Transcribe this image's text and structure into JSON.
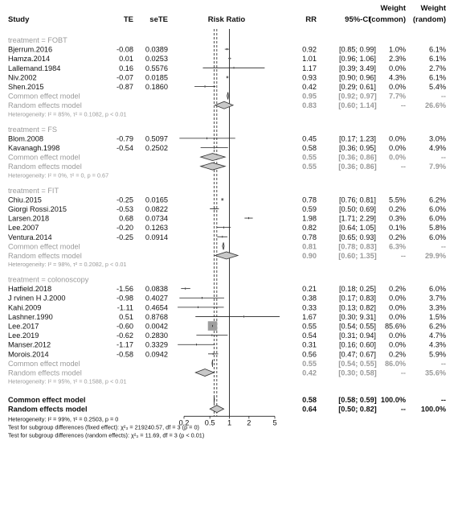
{
  "headers": {
    "study": "Study",
    "te": "TE",
    "sete": "seTE",
    "risk_ratio": "Risk Ratio",
    "rr": "RR",
    "ci": "95%-CI",
    "weight_top": "Weight",
    "weight_top2": "Weight",
    "weight_common": "(common)",
    "weight_random": "(random)"
  },
  "colors": {
    "text": "#111111",
    "grey_text": "#9a9a9a",
    "box": "#9e9e9e",
    "diamond_fill": "#c8c8c8"
  },
  "chart_data": {
    "type": "forest",
    "scale": "log",
    "xlim": [
      0.2,
      5
    ],
    "axis_ticks": [
      "0.2",
      "0.5",
      "1",
      "2",
      "5"
    ],
    "groups": [
      {
        "label": "treatment = FOBT",
        "studies": [
          {
            "name": "Bjerrum.2016",
            "te": "-0.08",
            "sete": "0.0389",
            "rr_text": "0.92",
            "ci_text": "[0.85; 0.99]",
            "wc": "1.0%",
            "wr": "6.1%",
            "rr": 0.92,
            "lo": 0.85,
            "hi": 0.99,
            "w": 1.0
          },
          {
            "name": "Hamza.2014",
            "te": "0.01",
            "sete": "0.0253",
            "rr_text": "1.01",
            "ci_text": "[0.96; 1.06]",
            "wc": "2.3%",
            "wr": "6.1%",
            "rr": 1.01,
            "lo": 0.96,
            "hi": 1.06,
            "w": 2.3
          },
          {
            "name": "Lallemand.1984",
            "te": "0.16",
            "sete": "0.5576",
            "rr_text": "1.17",
            "ci_text": "[0.39; 3.49]",
            "wc": "0.0%",
            "wr": "2.7%",
            "rr": 1.17,
            "lo": 0.39,
            "hi": 3.49,
            "w": 0.0
          },
          {
            "name": "Niv.2002",
            "te": "-0.07",
            "sete": "0.0185",
            "rr_text": "0.93",
            "ci_text": "[0.90; 0.96]",
            "wc": "4.3%",
            "wr": "6.1%",
            "rr": 0.93,
            "lo": 0.9,
            "hi": 0.96,
            "w": 4.3
          },
          {
            "name": "Shen.2015",
            "te": "-0.87",
            "sete": "0.1860",
            "rr_text": "0.42",
            "ci_text": "[0.29; 0.61]",
            "wc": "0.0%",
            "wr": "5.4%",
            "rr": 0.42,
            "lo": 0.29,
            "hi": 0.61,
            "w": 0.0
          }
        ],
        "common": {
          "label": "Common effect model",
          "rr_text": "0.95",
          "ci_text": "[0.92; 0.97]",
          "wc": "7.7%",
          "wr": "--",
          "rr": 0.95,
          "lo": 0.92,
          "hi": 0.97
        },
        "random": {
          "label": "Random effects model",
          "rr_text": "0.83",
          "ci_text": "[0.60; 1.14]",
          "wc": "--",
          "wr": "26.6%",
          "rr": 0.83,
          "lo": 0.6,
          "hi": 1.14
        },
        "heterogeneity": "Heterogeneity: I² = 85%, τ² = 0.1082, p < 0.01"
      },
      {
        "label": "treatment = FS",
        "studies": [
          {
            "name": "Blom.2008",
            "te": "-0.79",
            "sete": "0.5097",
            "rr_text": "0.45",
            "ci_text": "[0.17; 1.23]",
            "wc": "0.0%",
            "wr": "3.0%",
            "rr": 0.45,
            "lo": 0.17,
            "hi": 1.23,
            "w": 0.0
          },
          {
            "name": "Kavanagh.1998",
            "te": "-0.54",
            "sete": "0.2502",
            "rr_text": "0.58",
            "ci_text": "[0.36; 0.95]",
            "wc": "0.0%",
            "wr": "4.9%",
            "rr": 0.58,
            "lo": 0.36,
            "hi": 0.95,
            "w": 0.0
          }
        ],
        "common": {
          "label": "Common effect model",
          "rr_text": "0.55",
          "ci_text": "[0.36; 0.86]",
          "wc": "0.0%",
          "wr": "--",
          "rr": 0.55,
          "lo": 0.36,
          "hi": 0.86
        },
        "random": {
          "label": "Random effects model",
          "rr_text": "0.55",
          "ci_text": "[0.36; 0.86]",
          "wc": "--",
          "wr": "7.9%",
          "rr": 0.55,
          "lo": 0.36,
          "hi": 0.86
        },
        "heterogeneity": "Heterogeneity: I² = 0%, τ² = 0, p = 0.67"
      },
      {
        "label": "treatment = FIT",
        "studies": [
          {
            "name": "Chiu.2015",
            "te": "-0.25",
            "sete": "0.0165",
            "rr_text": "0.78",
            "ci_text": "[0.76; 0.81]",
            "wc": "5.5%",
            "wr": "6.2%",
            "rr": 0.78,
            "lo": 0.76,
            "hi": 0.81,
            "w": 5.5
          },
          {
            "name": "Giorgi Rossi.2015",
            "te": "-0.53",
            "sete": "0.0822",
            "rr_text": "0.59",
            "ci_text": "[0.50; 0.69]",
            "wc": "0.2%",
            "wr": "6.0%",
            "rr": 0.59,
            "lo": 0.5,
            "hi": 0.69,
            "w": 0.2
          },
          {
            "name": "Larsen.2018",
            "te": "0.68",
            "sete": "0.0734",
            "rr_text": "1.98",
            "ci_text": "[1.71; 2.29]",
            "wc": "0.3%",
            "wr": "6.0%",
            "rr": 1.98,
            "lo": 1.71,
            "hi": 2.29,
            "w": 0.3
          },
          {
            "name": "Lee.2007",
            "te": "-0.20",
            "sete": "0.1263",
            "rr_text": "0.82",
            "ci_text": "[0.64; 1.05]",
            "wc": "0.1%",
            "wr": "5.8%",
            "rr": 0.82,
            "lo": 0.64,
            "hi": 1.05,
            "w": 0.1
          },
          {
            "name": "Ventura.2014",
            "te": "-0.25",
            "sete": "0.0914",
            "rr_text": "0.78",
            "ci_text": "[0.65; 0.93]",
            "wc": "0.2%",
            "wr": "6.0%",
            "rr": 0.78,
            "lo": 0.65,
            "hi": 0.93,
            "w": 0.2
          }
        ],
        "common": {
          "label": "Common effect model",
          "rr_text": "0.81",
          "ci_text": "[0.78; 0.83]",
          "wc": "6.3%",
          "wr": "--",
          "rr": 0.81,
          "lo": 0.78,
          "hi": 0.83
        },
        "random": {
          "label": "Random effects model",
          "rr_text": "0.90",
          "ci_text": "[0.60; 1.35]",
          "wc": "--",
          "wr": "29.9%",
          "rr": 0.9,
          "lo": 0.6,
          "hi": 1.35
        },
        "heterogeneity": "Heterogeneity: I² = 98%, τ² = 0.2082, p < 0.01"
      },
      {
        "label": "treatment = colonoscopy",
        "studies": [
          {
            "name": "Hatfield.2018",
            "te": "-1.56",
            "sete": "0.0838",
            "rr_text": "0.21",
            "ci_text": "[0.18; 0.25]",
            "wc": "0.2%",
            "wr": "6.0%",
            "rr": 0.21,
            "lo": 0.18,
            "hi": 0.25,
            "w": 0.2
          },
          {
            "name": "J rvinen H J.2000",
            "te": "-0.98",
            "sete": "0.4027",
            "rr_text": "0.38",
            "ci_text": "[0.17; 0.83]",
            "wc": "0.0%",
            "wr": "3.7%",
            "rr": 0.38,
            "lo": 0.17,
            "hi": 0.83,
            "w": 0.0
          },
          {
            "name": "Kahi.2009",
            "te": "-1.11",
            "sete": "0.4654",
            "rr_text": "0.33",
            "ci_text": "[0.13; 0.82]",
            "wc": "0.0%",
            "wr": "3.3%",
            "rr": 0.33,
            "lo": 0.13,
            "hi": 0.82,
            "w": 0.0
          },
          {
            "name": "Lashner.1990",
            "te": "0.51",
            "sete": "0.8768",
            "rr_text": "1.67",
            "ci_text": "[0.30; 9.31]",
            "wc": "0.0%",
            "wr": "1.5%",
            "rr": 1.67,
            "lo": 0.3,
            "hi": 9.31,
            "w": 0.0
          },
          {
            "name": "Lee.2017",
            "te": "-0.60",
            "sete": "0.0042",
            "rr_text": "0.55",
            "ci_text": "[0.54; 0.55]",
            "wc": "85.6%",
            "wr": "6.2%",
            "rr": 0.55,
            "lo": 0.54,
            "hi": 0.55,
            "w": 85.6
          },
          {
            "name": "Lee.2019",
            "te": "-0.62",
            "sete": "0.2830",
            "rr_text": "0.54",
            "ci_text": "[0.31; 0.94]",
            "wc": "0.0%",
            "wr": "4.7%",
            "rr": 0.54,
            "lo": 0.31,
            "hi": 0.94,
            "w": 0.0
          },
          {
            "name": "Manser.2012",
            "te": "-1.17",
            "sete": "0.3329",
            "rr_text": "0.31",
            "ci_text": "[0.16; 0.60]",
            "wc": "0.0%",
            "wr": "4.3%",
            "rr": 0.31,
            "lo": 0.16,
            "hi": 0.6,
            "w": 0.0
          },
          {
            "name": "Morois.2014",
            "te": "-0.58",
            "sete": "0.0942",
            "rr_text": "0.56",
            "ci_text": "[0.47; 0.67]",
            "wc": "0.2%",
            "wr": "5.9%",
            "rr": 0.56,
            "lo": 0.47,
            "hi": 0.67,
            "w": 0.2
          }
        ],
        "common": {
          "label": "Common effect model",
          "rr_text": "0.55",
          "ci_text": "[0.54; 0.55]",
          "wc": "86.0%",
          "wr": "--",
          "rr": 0.55,
          "lo": 0.54,
          "hi": 0.55
        },
        "random": {
          "label": "Random effects model",
          "rr_text": "0.42",
          "ci_text": "[0.30; 0.58]",
          "wc": "--",
          "wr": "35.6%",
          "rr": 0.42,
          "lo": 0.3,
          "hi": 0.58
        },
        "heterogeneity": "Heterogeneity: I² = 95%, τ² = 0.1588, p < 0.01"
      }
    ],
    "overall": {
      "common": {
        "label": "Common effect model",
        "rr_text": "0.58",
        "ci_text": "[0.58; 0.59]",
        "wc": "100.0%",
        "wr": "--",
        "rr": 0.58,
        "lo": 0.58,
        "hi": 0.59
      },
      "random": {
        "label": "Random effects model",
        "rr_text": "0.64",
        "ci_text": "[0.50; 0.82]",
        "wc": "--",
        "wr": "100.0%",
        "rr": 0.64,
        "lo": 0.5,
        "hi": 0.82
      },
      "heterogeneity": "Heterogeneity: I² = 99%, τ² = 0.2503, p = 0",
      "subgroup_fixed": "Test for subgroup differences (fixed effect): χ²₃ = 219240.57, df = 3 (p = 0)",
      "subgroup_random": "Test for subgroup differences (random effects): χ²₃ = 11.69, df = 3 (p < 0.01)"
    }
  }
}
